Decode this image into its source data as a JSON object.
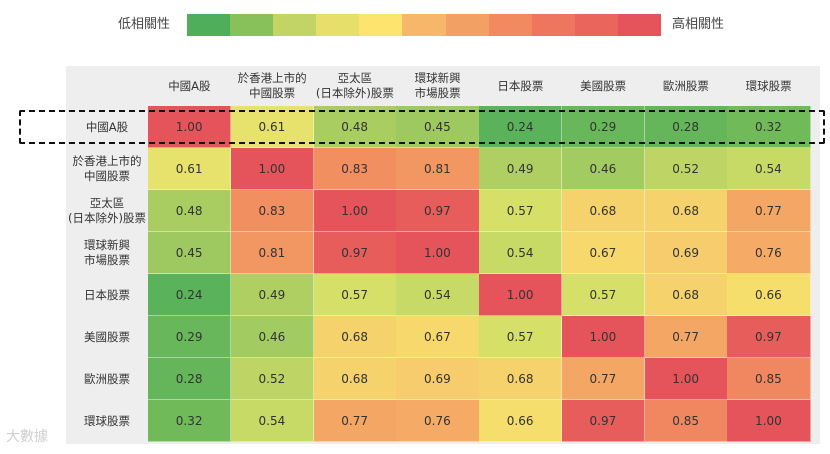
{
  "legend": {
    "low_label": "低相關性",
    "high_label": "高相關性",
    "colors": [
      "#4fae5a",
      "#88c05a",
      "#c2d466",
      "#e6e06a",
      "#fde46f",
      "#f6b76a",
      "#f3a064",
      "#f28a60",
      "#ee755e",
      "#ea655c",
      "#e5545a"
    ]
  },
  "chart_data": {
    "type": "heatmap",
    "columns": [
      "中國A股",
      "於香港上市的\n中國股票",
      "亞太區\n(日本除外)股票",
      "環球新興\n市場股票",
      "日本股票",
      "美國股票",
      "歐洲股票",
      "環球股票"
    ],
    "rows": [
      "中國A股",
      "於香港上市的\n中國股票",
      "亞太區\n(日本除外)股票",
      "環球新興\n市場股票",
      "日本股票",
      "美國股票",
      "歐洲股票",
      "環球股票"
    ],
    "values": [
      [
        1.0,
        0.61,
        0.48,
        0.45,
        0.24,
        0.29,
        0.28,
        0.32
      ],
      [
        0.61,
        1.0,
        0.83,
        0.81,
        0.49,
        0.46,
        0.52,
        0.54
      ],
      [
        0.48,
        0.83,
        1.0,
        0.97,
        0.57,
        0.68,
        0.68,
        0.77
      ],
      [
        0.45,
        0.81,
        0.97,
        1.0,
        0.54,
        0.67,
        0.69,
        0.76
      ],
      [
        0.24,
        0.49,
        0.57,
        0.54,
        1.0,
        0.57,
        0.68,
        0.66
      ],
      [
        0.29,
        0.46,
        0.68,
        0.67,
        0.57,
        1.0,
        0.77,
        0.97
      ],
      [
        0.28,
        0.52,
        0.68,
        0.69,
        0.68,
        0.77,
        1.0,
        0.85
      ],
      [
        0.32,
        0.54,
        0.77,
        0.76,
        0.66,
        0.97,
        0.85,
        1.0
      ]
    ],
    "value_labels": [
      [
        "1.00",
        "0.61",
        "0.48",
        "0.45",
        "0.24",
        "0.29",
        "0.28",
        "0.32"
      ],
      [
        "0.61",
        "1.00",
        "0.83",
        "0.81",
        "0.49",
        "0.46",
        "0.52",
        "0.54"
      ],
      [
        "0.48",
        "0.83",
        "1.00",
        "0.97",
        "0.57",
        "0.68",
        "0.68",
        "0.77"
      ],
      [
        "0.45",
        "0.81",
        "0.97",
        "1.00",
        "0.54",
        "0.67",
        "0.69",
        "0.76"
      ],
      [
        "0.24",
        "0.49",
        "0.57",
        "0.54",
        "1.00",
        "0.57",
        "0.68",
        "0.66"
      ],
      [
        "0.29",
        "0.46",
        "0.68",
        "0.67",
        "0.57",
        "1.00",
        "0.77",
        "0.97"
      ],
      [
        "0.28",
        "0.52",
        "0.68",
        "0.69",
        "0.68",
        "0.77",
        "1.00",
        "0.85"
      ],
      [
        "0.32",
        "0.54",
        "0.77",
        "0.76",
        "0.66",
        "0.97",
        "0.85",
        "1.00"
      ]
    ],
    "highlighted_row": "中國A股"
  },
  "watermark": "大數據"
}
